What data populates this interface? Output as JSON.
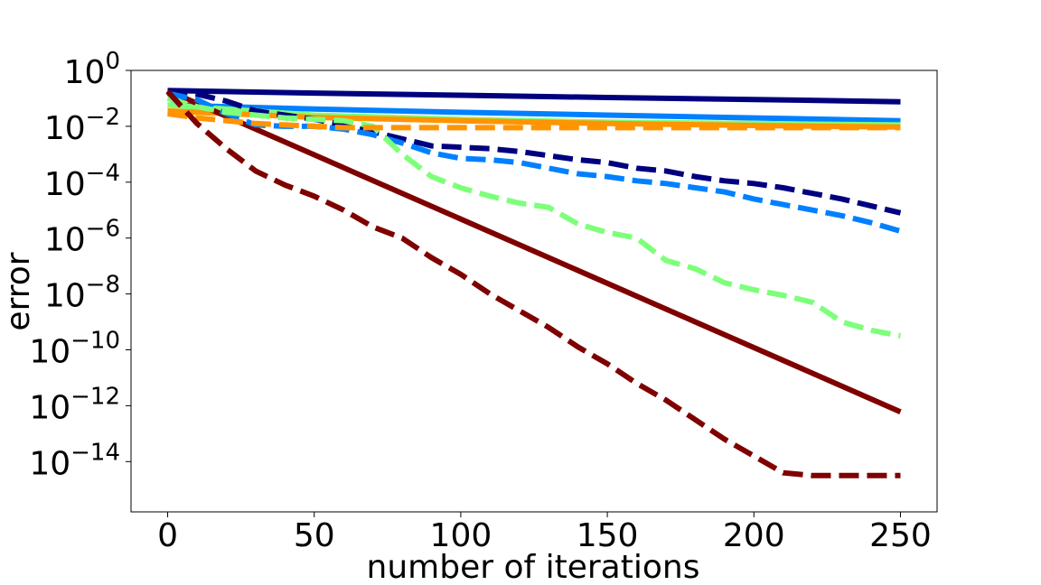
{
  "chart_data": {
    "type": "line",
    "title": "",
    "xlabel": "number of iterations",
    "ylabel": "error",
    "xscale": "linear",
    "yscale": "log",
    "xlim": [
      -12.5,
      262.5
    ],
    "ylim_log10": [
      -15.8,
      0
    ],
    "x_ticks": [
      0,
      50,
      100,
      150,
      200,
      250
    ],
    "x_tick_labels": [
      "0",
      "50",
      "100",
      "150",
      "200",
      "250"
    ],
    "y_ticks_log10": [
      0,
      -2,
      -4,
      -6,
      -8,
      -10,
      -12,
      -14
    ],
    "y_tick_labels": [
      {
        "base": "10",
        "exp": "0"
      },
      {
        "base": "10",
        "exp": "−2"
      },
      {
        "base": "10",
        "exp": "−4"
      },
      {
        "base": "10",
        "exp": "−6"
      },
      {
        "base": "10",
        "exp": "−8"
      },
      {
        "base": "10",
        "exp": "−10"
      },
      {
        "base": "10",
        "exp": "−12"
      },
      {
        "base": "10",
        "exp": "−14"
      }
    ],
    "grid": false,
    "legend": "none",
    "series": [
      {
        "name": "navy-solid",
        "color": "#00007f",
        "style": "solid",
        "x": [
          0,
          50,
          100,
          150,
          200,
          250
        ],
        "log10_y": [
          -0.72,
          -0.81,
          -0.89,
          -0.97,
          -1.04,
          -1.12
        ]
      },
      {
        "name": "blue-solid",
        "color": "#0080ff",
        "style": "solid",
        "x": [
          0,
          50,
          100,
          150,
          200,
          250
        ],
        "log10_y": [
          -1.24,
          -1.38,
          -1.5,
          -1.6,
          -1.7,
          -1.8
        ]
      },
      {
        "name": "green-solid",
        "color": "#7dff7a",
        "style": "solid",
        "x": [
          0,
          50,
          100,
          150,
          200,
          250
        ],
        "log10_y": [
          -1.24,
          -1.6,
          -1.75,
          -1.85,
          -1.9,
          -1.95
        ]
      },
      {
        "name": "orange-solid",
        "color": "#ff9400",
        "style": "solid",
        "x": [
          0,
          50,
          100,
          150,
          200,
          250
        ],
        "log10_y": [
          -1.45,
          -1.68,
          -1.8,
          -1.9,
          -1.97,
          -2.03
        ]
      },
      {
        "name": "maroon-solid",
        "color": "#7f0000",
        "style": "solid",
        "x": [
          0,
          250
        ],
        "log10_y": [
          -0.72,
          -12.22
        ]
      },
      {
        "name": "navy-dashed",
        "color": "#00007f",
        "style": "dashed",
        "x": [
          0,
          10,
          20,
          30,
          40,
          50,
          60,
          70,
          80,
          90,
          100,
          110,
          120,
          130,
          140,
          150,
          160,
          170,
          180,
          190,
          200,
          210,
          220,
          230,
          240,
          250
        ],
        "log10_y": [
          -0.75,
          -0.85,
          -1.1,
          -1.45,
          -1.6,
          -1.75,
          -1.95,
          -2.2,
          -2.45,
          -2.7,
          -2.75,
          -2.8,
          -2.9,
          -3.05,
          -3.2,
          -3.3,
          -3.5,
          -3.6,
          -3.8,
          -3.95,
          -4.05,
          -4.2,
          -4.4,
          -4.6,
          -4.85,
          -5.1
        ]
      },
      {
        "name": "blue-dashed",
        "color": "#0080ff",
        "style": "dashed",
        "x": [
          0,
          10,
          20,
          30,
          40,
          50,
          60,
          70,
          80,
          90,
          100,
          110,
          120,
          130,
          140,
          150,
          160,
          170,
          180,
          190,
          200,
          210,
          220,
          230,
          240,
          250
        ],
        "log10_y": [
          -0.82,
          -1.05,
          -1.55,
          -1.95,
          -2.0,
          -2.0,
          -2.1,
          -2.3,
          -2.6,
          -2.95,
          -3.15,
          -3.2,
          -3.3,
          -3.5,
          -3.7,
          -3.8,
          -3.95,
          -4.05,
          -4.2,
          -4.35,
          -4.6,
          -4.8,
          -5.0,
          -5.2,
          -5.45,
          -5.75
        ]
      },
      {
        "name": "green-dashed",
        "color": "#7dff7a",
        "style": "dashed",
        "x": [
          0,
          10,
          20,
          30,
          40,
          50,
          60,
          70,
          80,
          90,
          100,
          110,
          120,
          130,
          140,
          150,
          160,
          170,
          180,
          190,
          200,
          210,
          220,
          230,
          240,
          250
        ],
        "log10_y": [
          -1.0,
          -1.3,
          -1.5,
          -1.6,
          -1.7,
          -1.75,
          -1.8,
          -2.0,
          -3.0,
          -3.8,
          -4.2,
          -4.5,
          -4.75,
          -4.9,
          -5.5,
          -5.8,
          -6.0,
          -6.8,
          -7.1,
          -7.6,
          -7.85,
          -8.05,
          -8.3,
          -9.0,
          -9.3,
          -9.5
        ]
      },
      {
        "name": "orange-dashed",
        "color": "#ff9400",
        "style": "dashed",
        "x": [
          0,
          10,
          20,
          30,
          40,
          50,
          60,
          70,
          80,
          90,
          100,
          150,
          200,
          250
        ],
        "log10_y": [
          -1.55,
          -1.7,
          -1.8,
          -1.9,
          -1.95,
          -2.0,
          -2.05,
          -2.05,
          -2.05,
          -2.05,
          -2.05,
          -2.05,
          -2.05,
          -2.05
        ]
      },
      {
        "name": "maroon-dashed",
        "color": "#7f0000",
        "style": "dashed",
        "x": [
          0,
          10,
          20,
          30,
          40,
          50,
          60,
          70,
          80,
          90,
          100,
          110,
          120,
          130,
          140,
          150,
          160,
          170,
          180,
          190,
          200,
          210,
          220,
          230,
          240,
          250
        ],
        "log10_y": [
          -0.75,
          -1.9,
          -2.8,
          -3.6,
          -4.1,
          -4.5,
          -5.0,
          -5.6,
          -6.0,
          -6.7,
          -7.3,
          -8.0,
          -8.6,
          -9.2,
          -9.9,
          -10.5,
          -11.2,
          -11.8,
          -12.5,
          -13.2,
          -13.8,
          -14.4,
          -14.5,
          -14.5,
          -14.5,
          -14.5
        ]
      }
    ]
  }
}
